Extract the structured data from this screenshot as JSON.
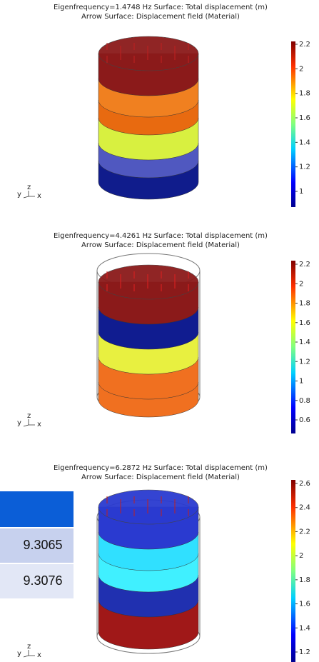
{
  "panels": [
    {
      "title": "Eigenfrequency=1.4748 Hz   Surface: Total displacement (m)",
      "subtitle": "Arrow Surface: Displacement field (Material)",
      "colorbar_ticks": [
        "2.2",
        "2",
        "1.8",
        "1.6",
        "1.4",
        "1.2",
        "1"
      ],
      "triad": [
        "y",
        "z",
        "x"
      ]
    },
    {
      "title": "Eigenfrequency=4.4261 Hz   Surface: Total displacement (m)",
      "subtitle": "Arrow Surface: Displacement field (Material)",
      "colorbar_ticks": [
        "2.2",
        "2",
        "1.8",
        "1.6",
        "1.4",
        "1.2",
        "1",
        "0.8",
        "0.6"
      ],
      "triad": [
        "y",
        "z",
        "x"
      ]
    },
    {
      "title": "Eigenfrequency=6.2872 Hz   Surface: Total displacement (m)",
      "subtitle": "Arrow Surface: Displacement field (Material)",
      "colorbar_ticks": [
        "2.6",
        "2.4",
        "2.2",
        "2",
        "1.8",
        "1.6",
        "1.4",
        "1.2"
      ],
      "triad": [
        "y",
        "z",
        "x"
      ]
    }
  ],
  "table": {
    "rows": [
      "9.3065",
      "9.3076"
    ]
  }
}
